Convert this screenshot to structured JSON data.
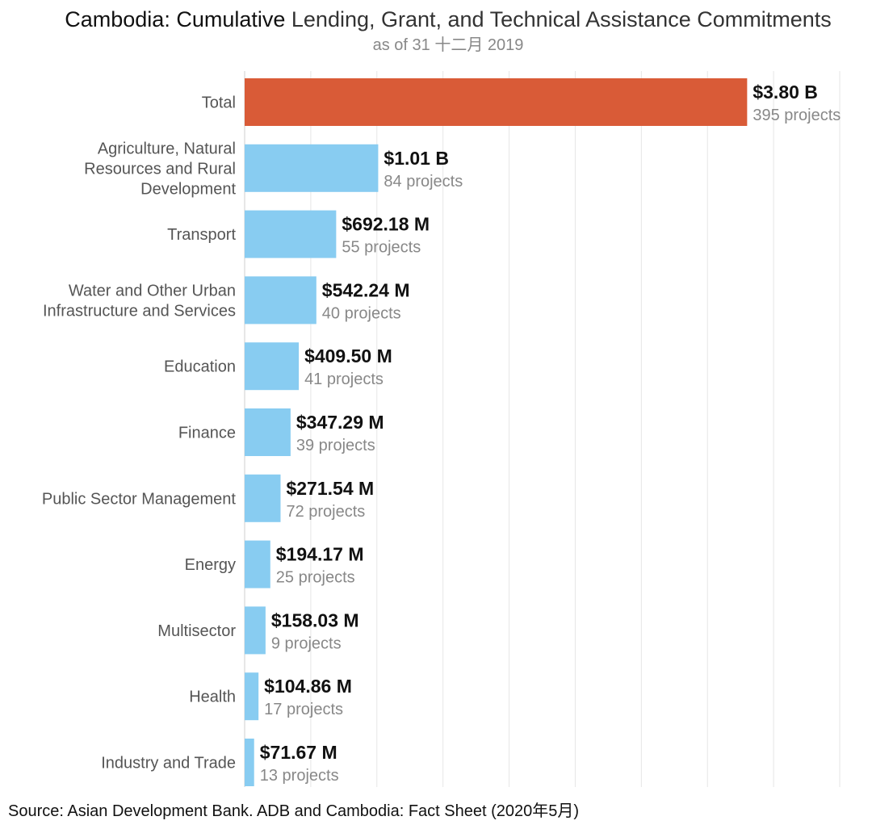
{
  "chart_data": {
    "type": "bar",
    "orientation": "horizontal",
    "title_part1": "Cambodia: Cumulative",
    "title_part2": "Lending, Grant, and Technical Assistance Commitments",
    "subtitle": "as of 31 十二月 2019",
    "source": "Source: Asian Development Bank. ADB and Cambodia: Fact Sheet (2020年5月)",
    "xlim": [
      0,
      4.5
    ],
    "grid": true,
    "colors": {
      "highlight": "#d95b37",
      "bar": "#88ccf1"
    },
    "categories": [
      "Total",
      "Agriculture, Natural Resources and Rural Development",
      "Transport",
      "Water and Other Urban Infrastructure and Services",
      "Education",
      "Finance",
      "Public Sector Management",
      "Energy",
      "Multisector",
      "Health",
      "Industry and Trade"
    ],
    "category_lines": [
      [
        "Total"
      ],
      [
        "Agriculture, Natural",
        "Resources and Rural",
        "Development"
      ],
      [
        "Transport"
      ],
      [
        "Water and Other Urban",
        "Infrastructure and Services"
      ],
      [
        "Education"
      ],
      [
        "Finance"
      ],
      [
        "Public Sector Management"
      ],
      [
        "Energy"
      ],
      [
        "Multisector"
      ],
      [
        "Health"
      ],
      [
        "Industry and Trade"
      ]
    ],
    "values": [
      3.8,
      1.01,
      0.69218,
      0.54224,
      0.4095,
      0.34729,
      0.27154,
      0.19417,
      0.15803,
      0.10486,
      0.07167
    ],
    "value_labels": [
      "$3.80 B",
      "$1.01 B",
      "$692.18 M",
      "$542.24 M",
      "$409.50 M",
      "$347.29 M",
      "$271.54 M",
      "$194.17 M",
      "$158.03 M",
      "$104.86 M",
      "$71.67 M"
    ],
    "project_labels": [
      "395 projects",
      "84 projects",
      "55 projects",
      "40 projects",
      "41 projects",
      "39 projects",
      "72 projects",
      "25 projects",
      "9 projects",
      "17 projects",
      "13 projects"
    ]
  }
}
